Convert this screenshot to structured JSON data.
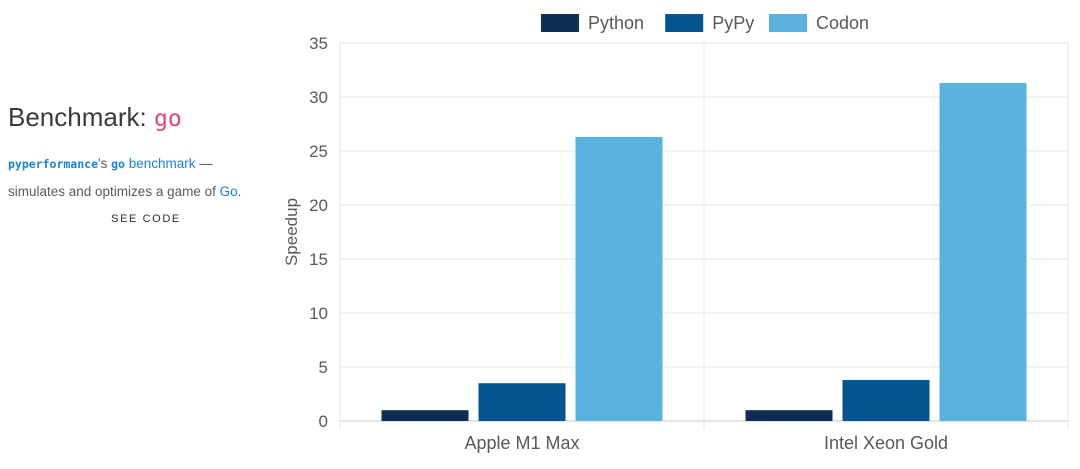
{
  "info": {
    "title_prefix": "Benchmark:",
    "title_highlight": "go",
    "desc_code1": "pyperformance",
    "desc_text1": "'s",
    "desc_code2": "go",
    "desc_link1": "benchmark",
    "desc_text2": "—",
    "desc_text3": "simulates and optimizes a game of",
    "desc_link2": "Go",
    "desc_text4": ".",
    "see_code": "SEE CODE"
  },
  "colors": {
    "accent": "#e0457b",
    "link": "#1b82d4"
  },
  "chart_data": {
    "type": "bar",
    "categories": [
      "Apple M1 Max",
      "Intel Xeon Gold"
    ],
    "series": [
      {
        "name": "Python",
        "color": "#0b2e52",
        "values": [
          1,
          1
        ]
      },
      {
        "name": "PyPy",
        "color": "#04548f",
        "values": [
          3.5,
          3.8
        ]
      },
      {
        "name": "Codon",
        "color": "#5ab3de",
        "values": [
          26.3,
          31.3
        ]
      }
    ],
    "ylabel": "Speedup",
    "xlabel": "",
    "ylim": [
      0,
      35
    ],
    "yticks": [
      0,
      5,
      10,
      15,
      20,
      25,
      30,
      35
    ],
    "grid": true,
    "legend": "top-center"
  }
}
